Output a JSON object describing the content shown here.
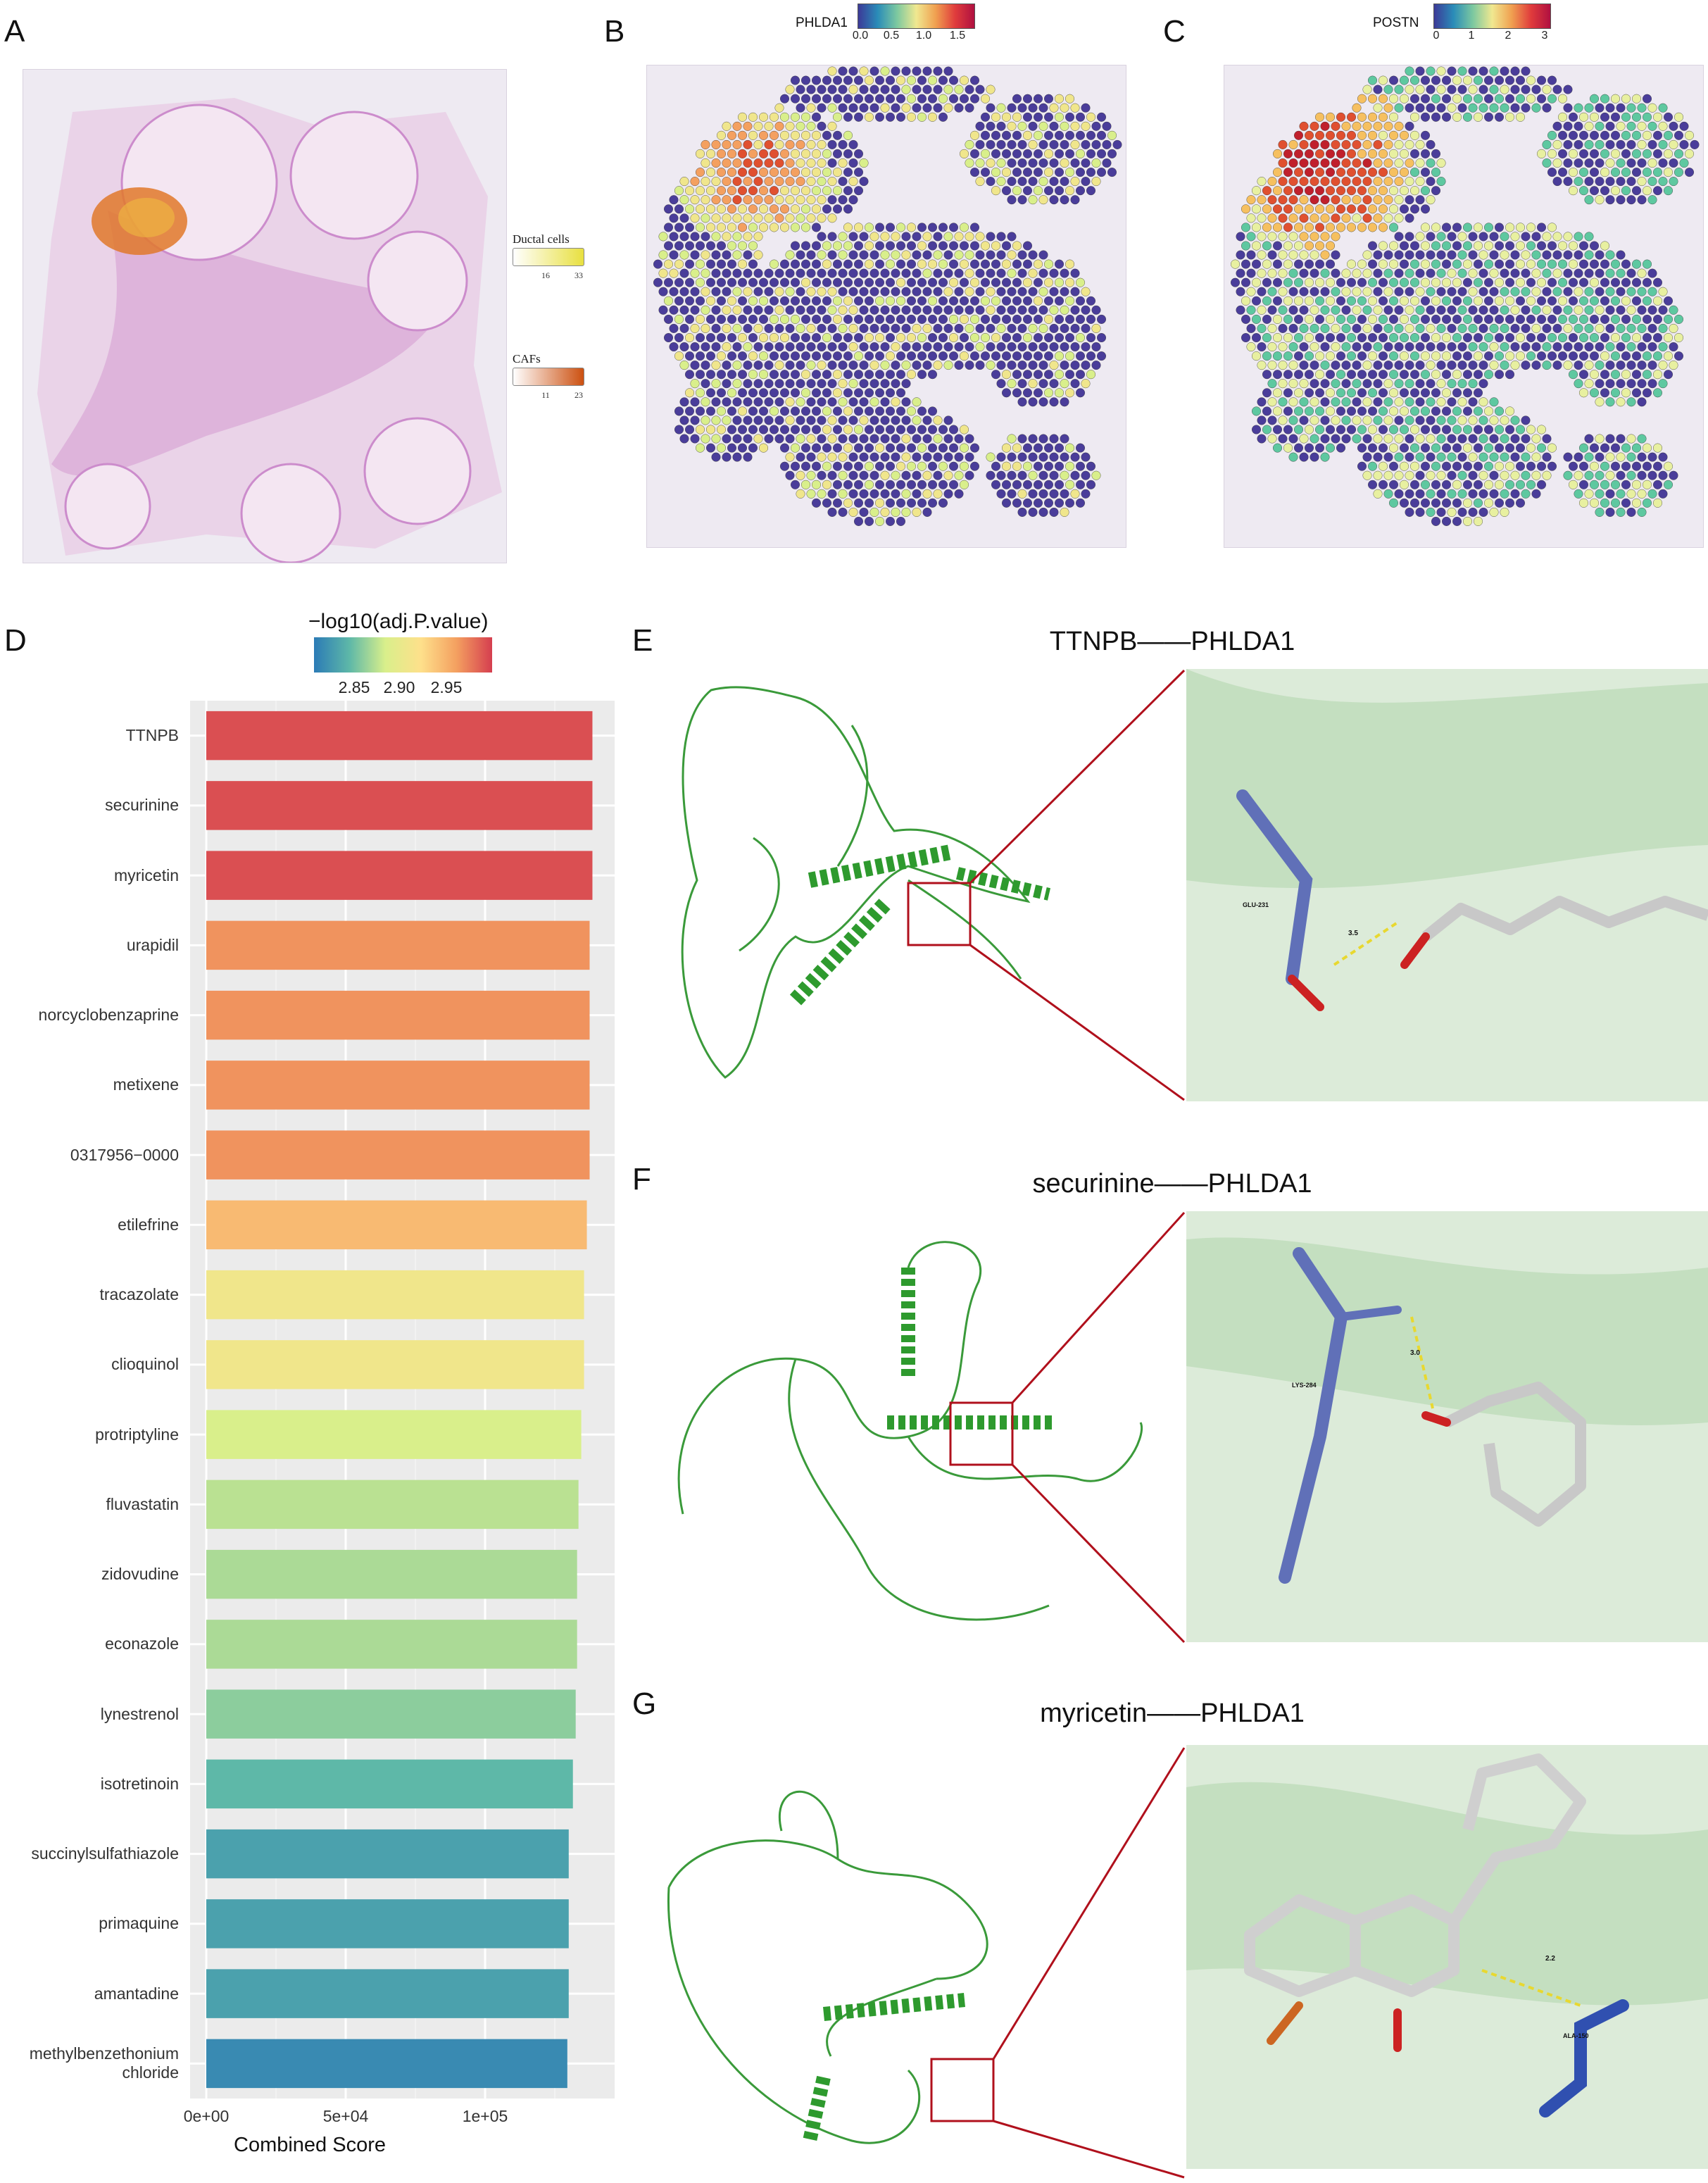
{
  "panels": {
    "A": "A",
    "B": "B",
    "C": "C",
    "D": "D",
    "E": "E",
    "F": "F",
    "G": "G"
  },
  "panelA": {
    "legend": [
      {
        "label": "Ductal cells",
        "tick_low": "16",
        "tick_high": "33",
        "color": "#e8e040"
      },
      {
        "label": "CAFs",
        "tick_low": "11",
        "tick_high": "23",
        "color": "#cc5010"
      }
    ]
  },
  "panelB": {
    "gene": "PHLDA1",
    "ticks": [
      "0.0",
      "0.5",
      "1.0",
      "1.5"
    ]
  },
  "panelC": {
    "gene": "POSTN",
    "ticks": [
      "0",
      "1",
      "2",
      "3"
    ]
  },
  "chart_data": {
    "type": "bar",
    "orientation": "horizontal",
    "xlabel": "Combined Score",
    "ylabel": "",
    "color_title": "−log10(adj.P.value)",
    "color_ticks": [
      "2.85",
      "2.90",
      "2.95"
    ],
    "color_range": [
      2.82,
      2.98
    ],
    "xlim": [
      0,
      140000
    ],
    "xticks": [
      {
        "value": 0,
        "label": "0e+00"
      },
      {
        "value": 50000,
        "label": "5e+04"
      },
      {
        "value": 100000,
        "label": "1e+05"
      }
    ],
    "grid": true,
    "categories": [
      "TTNPB",
      "securinine",
      "myricetin",
      "urapidil",
      "norcyclobenzaprine",
      "metixene",
      "0317956−0000",
      "etilefrine",
      "tracazolate",
      "clioquinol",
      "protriptyline",
      "fluvastatin",
      "zidovudine",
      "econazole",
      "lynestrenol",
      "isotretinoin",
      "succinylsulfathiazole",
      "primaquine",
      "amantadine",
      "methylbenzethonium\nchloride"
    ],
    "values": [
      138500,
      138500,
      138500,
      137500,
      137500,
      137500,
      137500,
      136500,
      135500,
      135500,
      134500,
      133500,
      133000,
      133000,
      132500,
      131500,
      130000,
      130000,
      130000,
      129500
    ],
    "neglog10_adjP": [
      2.975,
      2.975,
      2.975,
      2.955,
      2.955,
      2.955,
      2.955,
      2.94,
      2.915,
      2.915,
      2.9,
      2.89,
      2.885,
      2.885,
      2.875,
      2.86,
      2.845,
      2.845,
      2.845,
      2.83
    ]
  },
  "docking": [
    {
      "title": "TTNPB——PHLDA1",
      "residue": "GLU-231",
      "distance": "3.5"
    },
    {
      "title": "securinine——PHLDA1",
      "residue": "LYS-284",
      "distance": "3.0"
    },
    {
      "title": "myricetin——PHLDA1",
      "residue": "ALA-150",
      "distance": "2.2"
    }
  ]
}
